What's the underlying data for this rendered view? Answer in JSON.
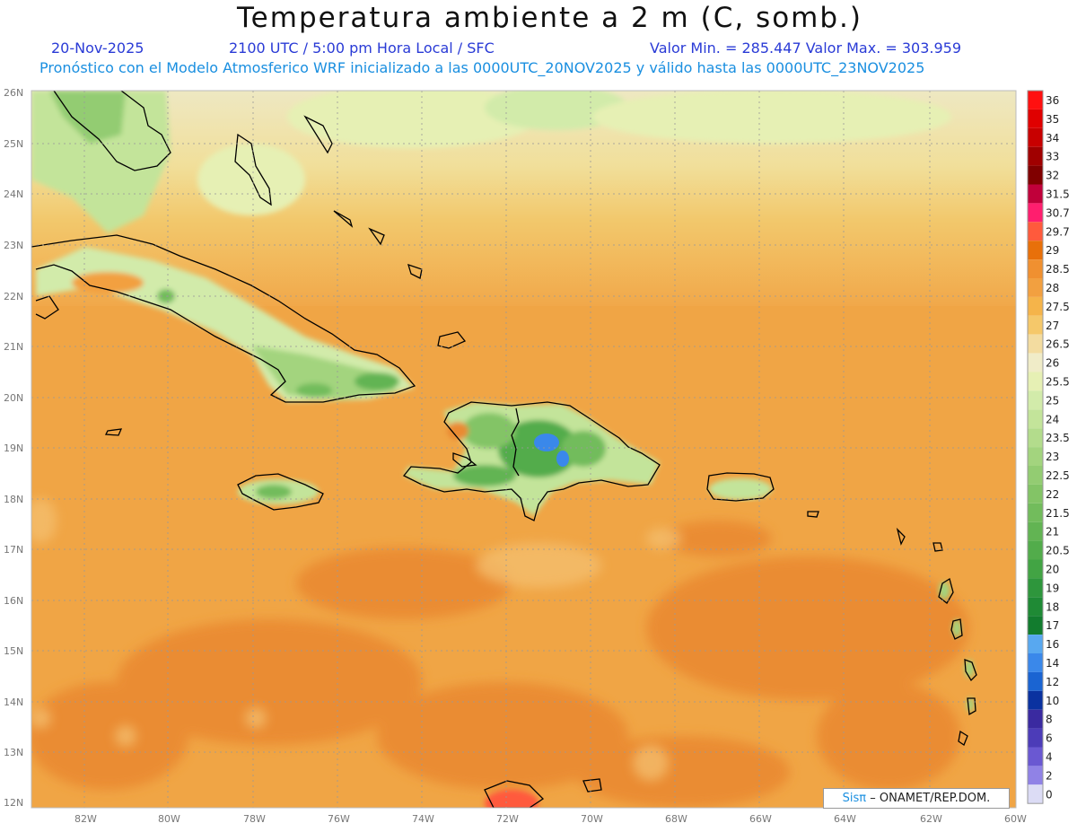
{
  "header": {
    "title": "Temperatura ambiente a 2 m (C, somb.)",
    "date": "20-Nov-2025",
    "time": "2100 UTC / 5:00 pm Hora Local / SFC",
    "minmax": "Valor Min. = 285.447  Valor Max. = 303.959",
    "model_line": "Pronóstico con el Modelo Atmosferico WRF inicializado a las 0000UTC_20NOV2025 y válido hasta las  0000UTC_23NOV2025"
  },
  "axes": {
    "lat_labels": [
      "26N",
      "25N",
      "24N",
      "23N",
      "22N",
      "21N",
      "20N",
      "19N",
      "18N",
      "17N",
      "16N",
      "15N",
      "14N",
      "13N",
      "12N"
    ],
    "lon_labels": [
      "82W",
      "80W",
      "78W",
      "76W",
      "74W",
      "72W",
      "70W",
      "68W",
      "66W",
      "64W",
      "62W",
      "60W"
    ]
  },
  "colorbar": {
    "labels": [
      "36",
      "35",
      "34",
      "33",
      "32",
      "31.5",
      "30.7",
      "29.7",
      "29",
      "28.5",
      "28",
      "27.5",
      "27",
      "26.5",
      "26",
      "25.5",
      "25",
      "24",
      "23.5",
      "23",
      "22.5",
      "22",
      "21.5",
      "21",
      "20.5",
      "20",
      "19",
      "18",
      "17",
      "16",
      "14",
      "12",
      "10",
      "8",
      "6",
      "4",
      "2",
      "0"
    ],
    "colors": [
      "#ff1010",
      "#e00000",
      "#c80000",
      "#a00000",
      "#800000",
      "#c0003a",
      "#ff1e6e",
      "#ff5a3c",
      "#e8700a",
      "#f09030",
      "#f2a040",
      "#f5b44a",
      "#f5c86a",
      "#f3dca0",
      "#f0ecc8",
      "#e6f0b4",
      "#d2ebaa",
      "#c3e49a",
      "#b3dc8c",
      "#a3d47e",
      "#93cc72",
      "#83c466",
      "#72bc5c",
      "#62b453",
      "#52ac4b",
      "#42a444",
      "#2e963c",
      "#1f8a35",
      "#127c2e",
      "#58a8f0",
      "#3a88ea",
      "#1a64d2",
      "#0a32a0",
      "#3a2aa0",
      "#4c3cb8",
      "#6a58d2",
      "#9082e6",
      "#dcdcf5"
    ]
  },
  "credit": {
    "sis": "Sisπ",
    "org": "– ONAMET/REP.DOM."
  },
  "colors": {
    "ocean_base": "#f0a042",
    "ocean_warm": "#ec8c32",
    "north_cool": "#f4dc98",
    "north_pale": "#eee8c0",
    "land_green": "#a8d888",
    "land_pale": "#d8ecae",
    "mountain": "#3a9a48",
    "peak": "#2a6ad8"
  }
}
